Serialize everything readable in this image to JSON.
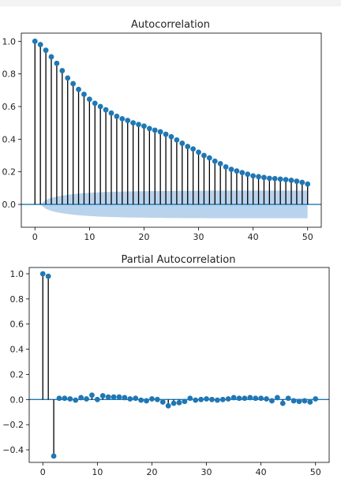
{
  "chart_data": [
    {
      "type": "stem",
      "title": "Autocorrelation",
      "xlabel": "",
      "ylabel": "",
      "xlim": [
        -2.5,
        52.5
      ],
      "ylim": [
        -0.14,
        1.05
      ],
      "xticks": [
        0,
        10,
        20,
        30,
        40,
        50
      ],
      "yticks": [
        0.0,
        0.2,
        0.4,
        0.6,
        0.8,
        1.0
      ],
      "ytick_labels": [
        "0.0",
        "0.2",
        "0.4",
        "0.6",
        "0.8",
        "1.0"
      ],
      "x": [
        0,
        1,
        2,
        3,
        4,
        5,
        6,
        7,
        8,
        9,
        10,
        11,
        12,
        13,
        14,
        15,
        16,
        17,
        18,
        19,
        20,
        21,
        22,
        23,
        24,
        25,
        26,
        27,
        28,
        29,
        30,
        31,
        32,
        33,
        34,
        35,
        36,
        37,
        38,
        39,
        40,
        41,
        42,
        43,
        44,
        45,
        46,
        47,
        48,
        49,
        50
      ],
      "values": [
        1.0,
        0.98,
        0.945,
        0.905,
        0.865,
        0.82,
        0.775,
        0.74,
        0.705,
        0.675,
        0.645,
        0.62,
        0.6,
        0.58,
        0.56,
        0.54,
        0.525,
        0.515,
        0.5,
        0.49,
        0.48,
        0.465,
        0.455,
        0.445,
        0.43,
        0.415,
        0.395,
        0.375,
        0.355,
        0.34,
        0.32,
        0.3,
        0.285,
        0.265,
        0.25,
        0.23,
        0.215,
        0.205,
        0.195,
        0.185,
        0.175,
        0.17,
        0.165,
        0.16,
        0.158,
        0.155,
        0.152,
        0.148,
        0.142,
        0.135,
        0.125
      ],
      "confidence_upper": [
        0.0,
        0.0,
        0.028,
        0.04,
        0.048,
        0.054,
        0.059,
        0.063,
        0.066,
        0.069,
        0.071,
        0.073,
        0.075,
        0.076,
        0.077,
        0.078,
        0.079,
        0.08,
        0.08,
        0.081,
        0.081,
        0.082,
        0.082,
        0.082,
        0.083,
        0.083,
        0.083,
        0.084,
        0.084,
        0.084,
        0.084,
        0.084,
        0.085,
        0.085,
        0.085,
        0.085,
        0.085,
        0.085,
        0.085,
        0.085,
        0.085,
        0.085,
        0.085,
        0.085,
        0.085,
        0.085,
        0.085,
        0.085,
        0.085,
        0.085,
        0.085
      ],
      "colors": {
        "marker": "#1f77b4",
        "stem": "#000000",
        "zero_line": "#1f77b4",
        "band": "#b9d3ec"
      }
    },
    {
      "type": "stem",
      "title": "Partial Autocorrelation",
      "xlabel": "",
      "ylabel": "",
      "xlim": [
        -2.5,
        52.5
      ],
      "ylim": [
        -0.5,
        1.05
      ],
      "xticks": [
        0,
        10,
        20,
        30,
        40,
        50
      ],
      "yticks": [
        -0.4,
        -0.2,
        0.0,
        0.2,
        0.4,
        0.6,
        0.8,
        1.0
      ],
      "ytick_labels": [
        "−0.4",
        "−0.2",
        "0.0",
        "0.2",
        "0.4",
        "0.6",
        "0.8",
        "1.0"
      ],
      "x": [
        0,
        1,
        2,
        3,
        4,
        5,
        6,
        7,
        8,
        9,
        10,
        11,
        12,
        13,
        14,
        15,
        16,
        17,
        18,
        19,
        20,
        21,
        22,
        23,
        24,
        25,
        26,
        27,
        28,
        29,
        30,
        31,
        32,
        33,
        34,
        35,
        36,
        37,
        38,
        39,
        40,
        41,
        42,
        43,
        44,
        45,
        46,
        47,
        48,
        49,
        50
      ],
      "values": [
        1.0,
        0.98,
        -0.45,
        0.01,
        0.01,
        0.005,
        -0.005,
        0.015,
        0.005,
        0.035,
        0.0,
        0.03,
        0.02,
        0.02,
        0.02,
        0.015,
        0.005,
        0.01,
        -0.005,
        -0.01,
        0.005,
        0.0,
        -0.02,
        -0.05,
        -0.03,
        -0.025,
        -0.015,
        0.01,
        -0.005,
        0.0,
        0.005,
        0.0,
        -0.005,
        0.0,
        0.005,
        0.015,
        0.01,
        0.01,
        0.015,
        0.01,
        0.01,
        0.005,
        -0.01,
        0.015,
        -0.03,
        0.01,
        -0.01,
        -0.015,
        -0.01,
        -0.02,
        0.005
      ],
      "colors": {
        "marker": "#1f77b4",
        "stem": "#000000",
        "zero_line": "#1f77b4"
      }
    }
  ]
}
